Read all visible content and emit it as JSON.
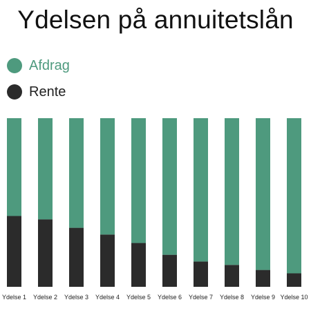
{
  "chart_data": {
    "type": "bar",
    "stacked": true,
    "title": "Ydelsen på annuitetslån",
    "categories": [
      "Ydelse 1",
      "Ydelse 2",
      "Ydelse 3",
      "Ydelse 4",
      "Ydelse 5",
      "Ydelse 6",
      "Ydelse 7",
      "Ydelse 8",
      "Ydelse 9",
      "Ydelse 10"
    ],
    "series": [
      {
        "name": "Rente",
        "color": "#2b2b2b",
        "values": [
          42,
          40,
          35,
          31,
          26,
          19,
          15,
          13,
          10,
          8
        ]
      },
      {
        "name": "Afdrag",
        "color": "#4e9a7e",
        "values": [
          58,
          60,
          65,
          69,
          74,
          81,
          85,
          87,
          90,
          92
        ]
      }
    ],
    "ylim": [
      0,
      100
    ],
    "grid": false,
    "legend_position": "top-left"
  }
}
